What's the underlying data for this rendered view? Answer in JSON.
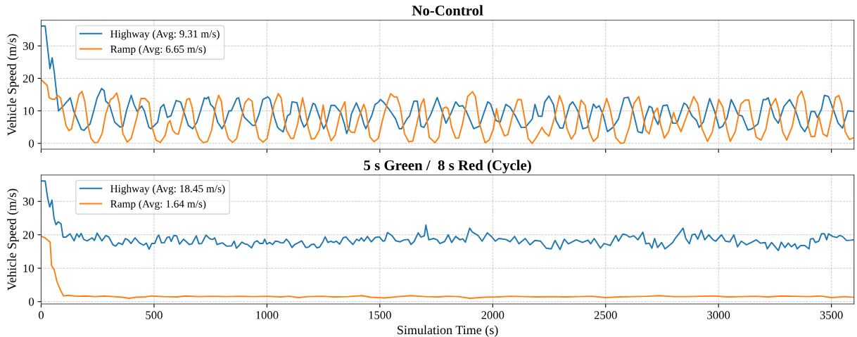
{
  "chart_data": [
    {
      "type": "line",
      "title": "No-Control",
      "ylabel": "Vehicle Speed (m/s)",
      "xlim": [
        0,
        3600
      ],
      "ylim": [
        -1.8,
        37.9
      ],
      "xticks": [
        0,
        500,
        1000,
        1500,
        2000,
        2500,
        3000,
        3500
      ],
      "yticks": [
        0,
        10,
        20,
        30
      ],
      "tick_labels": "y",
      "grid": true,
      "legend": "top left",
      "marker": "none",
      "line_style": "solid",
      "series": [
        {
          "name": "Highway (Avg: 9.31 m/s)",
          "color": "#1f77b4",
          "x": [
            0,
            18,
            39,
            49,
            58,
            77,
            98,
            129,
            144,
            178,
            190,
            203,
            217,
            233,
            248,
            268,
            279,
            286,
            302,
            326,
            350,
            362,
            378,
            399,
            411,
            426,
            445,
            457,
            477,
            486,
            516,
            529,
            543,
            559,
            575,
            598,
            618,
            652,
            671,
            690,
            706,
            723,
            732,
            741,
            750,
            764,
            782,
            801,
            813,
            832,
            842,
            866,
            875,
            885,
            900,
            937,
            946,
            965,
            982,
            1004,
            1014,
            1033,
            1047,
            1053,
            1072,
            1091,
            1103,
            1111,
            1133,
            1152,
            1164,
            1176,
            1204,
            1213,
            1238,
            1251,
            1263,
            1284,
            1300,
            1327,
            1343,
            1353,
            1364,
            1374,
            1396,
            1417,
            1429,
            1438,
            1454,
            1464,
            1479,
            1491,
            1503,
            1519,
            1546,
            1570,
            1586,
            1596,
            1620,
            1632,
            1651,
            1666,
            1682,
            1695,
            1725,
            1754,
            1775,
            1793,
            1815,
            1836,
            1852,
            1867,
            1882,
            1916,
            1941,
            1978,
            1990,
            2015,
            2033,
            2058,
            2077,
            2101,
            2126,
            2144,
            2175,
            2187,
            2202,
            2218,
            2230,
            2249,
            2270,
            2280,
            2298,
            2311,
            2341,
            2354,
            2366,
            2379,
            2399,
            2419,
            2446,
            2458,
            2471,
            2489,
            2508,
            2532,
            2557,
            2582,
            2600,
            2619,
            2643,
            2662,
            2674,
            2680,
            2693,
            2705,
            2717,
            2732,
            2754,
            2773,
            2797,
            2816,
            2847,
            2859,
            2883,
            2902,
            2914,
            2933,
            2961,
            2982,
            3003,
            3019,
            3038,
            3056,
            3068,
            3087,
            3105,
            3130,
            3148,
            3175,
            3198,
            3210,
            3220,
            3247,
            3265,
            3290,
            3315,
            3339,
            3364,
            3382,
            3395,
            3410,
            3426,
            3438,
            3456,
            3469,
            3487,
            3512,
            3530,
            3549,
            3573,
            3598
          ],
          "values": [
            36.1,
            36.1,
            23,
            26.3,
            22,
            10,
            11.5,
            14,
            10,
            4.3,
            4,
            5,
            6,
            10,
            14,
            16.9,
            16.2,
            13,
            12,
            6.5,
            5,
            5.2,
            10,
            14.8,
            12,
            9.8,
            11.5,
            10,
            5,
            4.5,
            6.5,
            11,
            12,
            8,
            8.5,
            13.2,
            12.7,
            5.5,
            4.5,
            6.5,
            10,
            14,
            13.7,
            14.3,
            12,
            11,
            6.5,
            4.5,
            6,
            10,
            10,
            13.8,
            14,
            11,
            8,
            5.5,
            5.5,
            9,
            13.5,
            14.3,
            13.5,
            8,
            5,
            4.5,
            3.5,
            8.5,
            9,
            12.8,
            12.5,
            7,
            5,
            6,
            12.3,
            12,
            7,
            4.5,
            6,
            11.7,
            11.7,
            9.5,
            6,
            3,
            5,
            9,
            12.5,
            9,
            6,
            4.5,
            7,
            8.5,
            12,
            12.5,
            13.5,
            12.5,
            10,
            7.5,
            4.5,
            4.5,
            7.5,
            8.5,
            13,
            13,
            5.3,
            4.9,
            8.8,
            14.1,
            10,
            6.2,
            9.2,
            12.8,
            11.4,
            11.6,
            10,
            4.5,
            5.3,
            12.8,
            12.2,
            7,
            6.5,
            12,
            11.1,
            8.4,
            4.9,
            4.9,
            7.5,
            12,
            8.4,
            8.3,
            12.7,
            14.6,
            11.8,
            7.1,
            4.7,
            4.7,
            11.8,
            12.8,
            11.4,
            9.7,
            4.5,
            4.9,
            12.1,
            10.9,
            11.6,
            8.8,
            3.6,
            4.9,
            7.5,
            14,
            14.2,
            10.5,
            3.6,
            3.2,
            7.5,
            8.8,
            11.4,
            11,
            7.9,
            5.8,
            11.6,
            11.8,
            6.2,
            6.2,
            12.4,
            11.8,
            8.4,
            7.1,
            4.9,
            6.6,
            13.8,
            10,
            4.7,
            5.3,
            7.9,
            13.5,
            11.8,
            8.8,
            8.4,
            4.1,
            4.5,
            6,
            13.5,
            13.5,
            14,
            7.9,
            6.2,
            11.4,
            13.5,
            10.5,
            5.3,
            3.6,
            5.3,
            9.8,
            9.8,
            7.9,
            10.5,
            14.8,
            14.4,
            9.7,
            6.2,
            4.7,
            10,
            9.8
          ]
        },
        {
          "name": "Ramp (Avg: 6.65 m/s)",
          "color": "#ff7f0e",
          "x": [
            0,
            27,
            36,
            48,
            61,
            73,
            86,
            110,
            123,
            135,
            151,
            168,
            181,
            193,
            209,
            221,
            237,
            251,
            270,
            286,
            307,
            319,
            335,
            347,
            362,
            381,
            399,
            424,
            442,
            460,
            478,
            491,
            509,
            528,
            550,
            561,
            571,
            583,
            596,
            608,
            627,
            645,
            657,
            669,
            682,
            700,
            718,
            737,
            755,
            774,
            786,
            798,
            811,
            829,
            848,
            866,
            891,
            903,
            918,
            934,
            946,
            964,
            983,
            1001,
            1020,
            1032,
            1050,
            1063,
            1075,
            1087,
            1106,
            1118,
            1136,
            1158,
            1170,
            1182,
            1197,
            1212,
            1232,
            1249,
            1265,
            1284,
            1302,
            1327,
            1345,
            1357,
            1372,
            1388,
            1407,
            1429,
            1437,
            1456,
            1474,
            1493,
            1515,
            1536,
            1548,
            1564,
            1576,
            1591,
            1609,
            1628,
            1646,
            1664,
            1683,
            1695,
            1719,
            1744,
            1762,
            1781,
            1793,
            1803,
            1818,
            1836,
            1849,
            1867,
            1889,
            1910,
            1923,
            1941,
            1966,
            1984,
            2003,
            2017,
            2030,
            2052,
            2067,
            2089,
            2111,
            2126,
            2141,
            2157,
            2175,
            2194,
            2218,
            2231,
            2249,
            2274,
            2296,
            2311,
            2329,
            2348,
            2366,
            2391,
            2409,
            2428,
            2446,
            2465,
            2483,
            2505,
            2520,
            2545,
            2567,
            2582,
            2606,
            2625,
            2647,
            2662,
            2678,
            2693,
            2717,
            2730,
            2742,
            2760,
            2779,
            2801,
            2816,
            2834,
            2859,
            2890,
            2908,
            2927,
            2951,
            2973,
            3001,
            3019,
            3038,
            3052,
            3074,
            3099,
            3118,
            3134,
            3148,
            3167,
            3188,
            3210,
            3228,
            3253,
            3265,
            3284,
            3302,
            3327,
            3352,
            3368,
            3382,
            3397,
            3410,
            3426,
            3444,
            3463,
            3481,
            3500,
            3518,
            3533,
            3545,
            3561,
            3580,
            3598
          ],
          "values": [
            19.6,
            17.8,
            14,
            13.6,
            13.6,
            14.8,
            14,
            5.5,
            3.9,
            4.5,
            10,
            15,
            16,
            13,
            5,
            1.5,
            0.2,
            0.3,
            3,
            9,
            13.5,
            14,
            15.5,
            12,
            3,
            0.4,
            1.5,
            8,
            13.8,
            13.8,
            12.5,
            5,
            1,
            0.3,
            2.5,
            6,
            7,
            4,
            3,
            2.8,
            8,
            13.5,
            13.8,
            11,
            5,
            1.5,
            0.2,
            0.6,
            4,
            12,
            14.8,
            13,
            6,
            1.5,
            0.3,
            1.5,
            9,
            12.5,
            13.8,
            13,
            7,
            1.5,
            0.4,
            1.5,
            8,
            12,
            15.3,
            14,
            8,
            4,
            1.5,
            1.5,
            6,
            14,
            10,
            5,
            1.3,
            1.5,
            4,
            11.8,
            5,
            0.8,
            2.5,
            10,
            12.8,
            5,
            3.5,
            3.3,
            8,
            12,
            10.5,
            2,
            0.5,
            1.5,
            8,
            13,
            15.3,
            14.3,
            14.3,
            11,
            3,
            0.5,
            0.7,
            6,
            12,
            13.7,
            1.9,
            0.2,
            1.9,
            10.8,
            11.2,
            10.5,
            4.9,
            1.6,
            1.6,
            6.2,
            14.4,
            15.9,
            14.4,
            6.2,
            0.2,
            1,
            4.4,
            10.7,
            6.2,
            2.3,
            2.7,
            8.8,
            13.5,
            13.5,
            7.9,
            1.5,
            0,
            1.9,
            4.9,
            3.4,
            2.2,
            7.9,
            14.7,
            11.8,
            4.5,
            1.3,
            3.2,
            13.3,
            11.8,
            3.6,
            0.6,
            1.9,
            8.8,
            13.8,
            10.5,
            1.7,
            0,
            0.2,
            5.3,
            12.2,
            14.4,
            9.7,
            4.1,
            2.9,
            9.7,
            10.9,
            6.2,
            1.6,
            3.6,
            9.5,
            6.2,
            3.6,
            8.4,
            14.4,
            12.2,
            4.5,
            0.6,
            3.6,
            13.5,
            11.2,
            4.1,
            0.6,
            3.6,
            12.1,
            13.3,
            13.3,
            7.9,
            1.9,
            1,
            4.4,
            10.9,
            13.8,
            10.9,
            3.6,
            1,
            5.3,
            14.4,
            16.1,
            13.1,
            5.3,
            2.1,
            2.1,
            8.4,
            2.9,
            2.1,
            7.9,
            14.1,
            14.7,
            12.2,
            3.6,
            1.2,
            1.7
          ]
        }
      ]
    },
    {
      "type": "line",
      "title": "5 s Green /  8 s Red (Cycle)",
      "xlabel": "Simulation Time (s)",
      "ylabel": "Vehicle Speed (m/s)",
      "xlim": [
        0,
        3600
      ],
      "ylim": [
        -0.7,
        37.9
      ],
      "xticks": [
        0,
        500,
        1000,
        1500,
        2000,
        2500,
        3000,
        3500
      ],
      "yticks": [
        0,
        10,
        20,
        30
      ],
      "grid": true,
      "legend": "top left",
      "marker": "none",
      "line_style": "solid",
      "series": [
        {
          "name": "Highway (Avg: 18.45 m/s)",
          "color": "#1f77b4",
          "x": [
            0,
            18,
            29,
            38,
            48,
            57,
            66,
            75,
            88,
            97,
            110,
            128,
            146,
            158,
            168,
            177,
            189,
            204,
            226,
            236,
            248,
            269,
            287,
            300,
            318,
            330,
            343,
            360,
            373,
            386,
            398,
            416,
            435,
            453,
            466,
            478,
            490,
            503,
            515,
            521,
            533,
            545,
            558,
            568,
            576,
            588,
            600,
            613,
            631,
            656,
            668,
            687,
            699,
            711,
            730,
            748,
            760,
            769,
            779,
            803,
            822,
            843,
            855,
            865,
            877,
            889,
            902,
            914,
            932,
            945,
            957,
            969,
            982,
            990,
            1000,
            1012,
            1025,
            1037,
            1049,
            1061,
            1073,
            1086,
            1098,
            1111,
            1123,
            1138,
            1154,
            1172,
            1184,
            1197,
            1209,
            1221,
            1233,
            1247,
            1258,
            1270,
            1283,
            1295,
            1307,
            1322,
            1338,
            1350,
            1362,
            1381,
            1397,
            1408,
            1418,
            1430,
            1445,
            1462,
            1480,
            1498,
            1514,
            1522,
            1534,
            1553,
            1571,
            1590,
            1608,
            1626,
            1638,
            1652,
            1670,
            1682,
            1697,
            1704,
            1717,
            1738,
            1754,
            1766,
            1787,
            1803,
            1818,
            1836,
            1855,
            1867,
            1879,
            1898,
            1910,
            1935,
            1953,
            1976,
            1997,
            2012,
            2027,
            2058,
            2077,
            2097,
            2116,
            2144,
            2165,
            2187,
            2212,
            2237,
            2259,
            2276,
            2298,
            2317,
            2335,
            2370,
            2397,
            2422,
            2434,
            2449,
            2461,
            2477,
            2493,
            2520,
            2545,
            2557,
            2576,
            2591,
            2606,
            2625,
            2643,
            2665,
            2678,
            2693,
            2705,
            2717,
            2730,
            2748,
            2763,
            2785,
            2797,
            2810,
            2828,
            2843,
            2855,
            2871,
            2883,
            2896,
            2908,
            2924,
            2939,
            2957,
            2976,
            2988,
            3013,
            3031,
            3050,
            3068,
            3084,
            3101,
            3124,
            3148,
            3167,
            3185,
            3207,
            3216,
            3235,
            3265,
            3278,
            3294,
            3309,
            3323,
            3339,
            3348,
            3364,
            3382,
            3401,
            3407,
            3419,
            3429,
            3444,
            3456,
            3469,
            3479,
            3487,
            3506,
            3524,
            3536,
            3549,
            3567,
            3586,
            3598
          ],
          "values": [
            36.1,
            36.1,
            31,
            28.3,
            30.4,
            25,
            23,
            23.9,
            23.3,
            19.3,
            19.3,
            20.3,
            18.2,
            20.3,
            19.3,
            20.4,
            18.6,
            18.2,
            19.1,
            18.3,
            20.5,
            18.2,
            19.8,
            19.3,
            17,
            16.6,
            17.6,
            17.1,
            18.9,
            18.4,
            17.4,
            19.1,
            17.6,
            16.9,
            17.5,
            15.7,
            17.4,
            17.4,
            19.4,
            19.9,
            17.6,
            17.6,
            19.2,
            19.4,
            18,
            19.8,
            19.7,
            17.2,
            18.7,
            17.1,
            17.3,
            19.7,
            17.3,
            17.4,
            19.9,
            18.8,
            18.6,
            19.1,
            17.1,
            17.6,
            16.6,
            16.7,
            18.1,
            16,
            16.8,
            17.8,
            17.3,
            17.1,
            16.1,
            17.8,
            18.2,
            17.4,
            17.4,
            18.7,
            17.2,
            17.7,
            17.1,
            18.1,
            18,
            17.6,
            17.6,
            18.7,
            17.8,
            16.2,
            17.1,
            17.6,
            18.2,
            16.2,
            16.3,
            17.1,
            17.2,
            16.1,
            16.3,
            17.8,
            19.4,
            17.7,
            18.1,
            17.7,
            18.1,
            17.2,
            19.1,
            19.4,
            18.4,
            17.1,
            18.7,
            18.2,
            19.1,
            18.1,
            19.5,
            17.9,
            19.2,
            19.4,
            18.1,
            18.2,
            20.7,
            19.8,
            18.2,
            17.9,
            18.5,
            18.6,
            17.1,
            18,
            20.6,
            19.3,
            19.7,
            22.9,
            18.5,
            18.9,
            18.5,
            17.4,
            18,
            20,
            17.7,
            19.5,
            18.5,
            18.8,
            17.8,
            22,
            20.8,
            19.8,
            18.1,
            20.6,
            19.3,
            18.1,
            18.9,
            18.6,
            17.9,
            19.5,
            17.3,
            18.9,
            17,
            18.3,
            18.1,
            16,
            15.8,
            18.3,
            15.6,
            18.7,
            17.3,
            18.5,
            17.7,
            18.4,
            17.3,
            18.9,
            17.7,
            16,
            17.4,
            16.8,
            19.8,
            18.1,
            20.2,
            20,
            19.3,
            19.7,
            18.5,
            20.8,
            17.3,
            17.5,
            16,
            18.9,
            16.2,
            17.7,
            15.8,
            17,
            17.7,
            19.1,
            20.6,
            22,
            18.9,
            17.3,
            20,
            20.2,
            18.7,
            21.4,
            18.5,
            20,
            18.5,
            18.1,
            20,
            18.1,
            17.9,
            20,
            16.4,
            18.1,
            17,
            17.8,
            18.5,
            17.5,
            17.7,
            15.8,
            17.7,
            15.3,
            17.8,
            16.2,
            17.5,
            16.4,
            17.3,
            15.8,
            16.8,
            16.8,
            15.8,
            18.7,
            18.9,
            17.7,
            18.1,
            20.3,
            20.3,
            18.5,
            20.3,
            19.5,
            19.2,
            19.8,
            19.5,
            18.3,
            18.4,
            18.5
          ]
        },
        {
          "name": "Ramp (Avg: 1.64 m/s)",
          "color": "#ff7f0e",
          "x": [
            0,
            15,
            40,
            46,
            58,
            70,
            84,
            99,
            120,
            160,
            200,
            240,
            280,
            320,
            360,
            390,
            420,
            460,
            490,
            540,
            600,
            640,
            700,
            760,
            820,
            880,
            940,
            1000,
            1060,
            1100,
            1140,
            1180,
            1240,
            1300,
            1360,
            1420,
            1460,
            1520,
            1580,
            1640,
            1700,
            1760,
            1800,
            1850,
            1900,
            1960,
            2020,
            2080,
            2140,
            2200,
            2260,
            2320,
            2380,
            2440,
            2500,
            2560,
            2620,
            2680,
            2740,
            2800,
            2860,
            2920,
            2980,
            3040,
            3100,
            3160,
            3220,
            3280,
            3340,
            3400,
            3450,
            3500,
            3560,
            3598
          ],
          "values": [
            19.6,
            19.2,
            17.8,
            10.8,
            9.5,
            6,
            3.7,
            1.7,
            1.9,
            1.6,
            1.7,
            1.5,
            1.7,
            1.5,
            1.3,
            1.0,
            1.3,
            1.4,
            1.7,
            1.5,
            1.4,
            1.7,
            1.5,
            1.6,
            1.5,
            1.6,
            1.5,
            1.6,
            1.4,
            1.6,
            1.2,
            1.5,
            1.6,
            1.4,
            1.5,
            1.8,
            1.3,
            1.1,
            1.5,
            1.8,
            1.5,
            1.4,
            1.6,
            1.5,
            1.0,
            1.3,
            1.4,
            1.6,
            1.5,
            1.4,
            1.5,
            1.4,
            1.5,
            1.6,
            1.2,
            1.4,
            1.5,
            1.6,
            1.8,
            1.5,
            1.5,
            1.6,
            1.7,
            1.4,
            1.5,
            1.6,
            1.4,
            1.7,
            1.6,
            1.5,
            1.7,
            1.2,
            1.5,
            1.3
          ]
        }
      ]
    }
  ]
}
